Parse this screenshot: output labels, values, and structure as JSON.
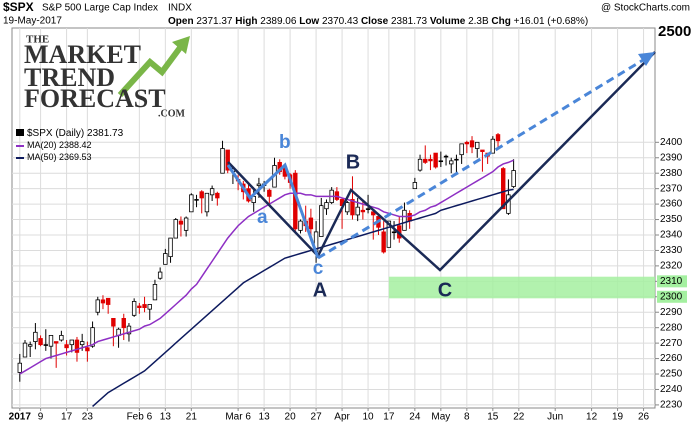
{
  "chart_data": {
    "type": "candlestick",
    "header": {
      "symbol": "$SPX",
      "name": "S&P 500 Large Cap Index",
      "exchange": "INDX",
      "source": "@ StockCharts.com",
      "date": "19-May-2017",
      "open_label": "Open",
      "high_label": "High",
      "low_label": "Low",
      "close_label": "Close",
      "volume_label": "Volume",
      "volume": "2.3B",
      "change_label": "Chg",
      "change": "+16.01 (+0.68%)"
    },
    "logo": [
      "THE",
      "MARKET",
      "TREND",
      "FORECAST",
      ".COM"
    ],
    "legend_label": "$SPX (Daily)",
    "up_color": "#000000",
    "down_color": "#e00000",
    "ohlc": [
      [
        2251,
        2263,
        2245,
        2257
      ],
      [
        2261,
        2272,
        2261,
        2270
      ],
      [
        2268,
        2271,
        2261,
        2269
      ],
      [
        2271,
        2283,
        2266,
        2277
      ],
      [
        2273,
        2275,
        2268,
        2269
      ],
      [
        2269,
        2279,
        2265,
        2269
      ],
      [
        2268,
        2275,
        2260,
        2275
      ],
      [
        2271,
        2271,
        2254,
        2270
      ],
      [
        2272,
        2278,
        2271,
        2275
      ],
      [
        2269,
        2272,
        2262,
        2267
      ],
      [
        2269,
        2272,
        2264,
        2272
      ],
      [
        2272,
        2274,
        2258,
        2264
      ],
      [
        2269,
        2276,
        2265,
        2271
      ],
      [
        2267,
        2271,
        2258,
        2265
      ],
      [
        2268,
        2284,
        2267,
        2280
      ],
      [
        2290,
        2300,
        2288,
        2298
      ],
      [
        2298,
        2301,
        2292,
        2296
      ],
      [
        2299,
        2299,
        2289,
        2295
      ],
      [
        2286,
        2286,
        2268,
        2281
      ],
      [
        2275,
        2280,
        2267,
        2279
      ],
      [
        2286,
        2289,
        2272,
        2280
      ],
      [
        2276,
        2283,
        2271,
        2281
      ],
      [
        2288,
        2299,
        2287,
        2297
      ],
      [
        2294,
        2296,
        2289,
        2293
      ],
      [
        2295,
        2300,
        2290,
        2293
      ],
      [
        2292,
        2295,
        2285,
        2295
      ],
      [
        2298,
        2311,
        2298,
        2308
      ],
      [
        2312,
        2319,
        2311,
        2316
      ],
      [
        2321,
        2331,
        2321,
        2328
      ],
      [
        2326,
        2338,
        2322,
        2338
      ],
      [
        2338,
        2351,
        2338,
        2350
      ],
      [
        2349,
        2352,
        2339,
        2347
      ],
      [
        2343,
        2352,
        2339,
        2351
      ],
      [
        2355,
        2367,
        2355,
        2366
      ],
      [
        2363,
        2366,
        2358,
        2363
      ],
      [
        2368,
        2369,
        2354,
        2364
      ],
      [
        2355,
        2367,
        2352,
        2367
      ],
      [
        2366,
        2372,
        2362,
        2370
      ],
      [
        2367,
        2368,
        2359,
        2364
      ],
      [
        2380,
        2401,
        2380,
        2396
      ],
      [
        2395,
        2395,
        2380,
        2382
      ],
      [
        2381,
        2384,
        2373,
        2383
      ],
      [
        2376,
        2379,
        2369,
        2375
      ],
      [
        2373,
        2375,
        2363,
        2368
      ],
      [
        2370,
        2374,
        2361,
        2362
      ],
      [
        2361,
        2369,
        2355,
        2365
      ],
      [
        2372,
        2377,
        2364,
        2373
      ],
      [
        2372,
        2375,
        2368,
        2373
      ],
      [
        2369,
        2370,
        2359,
        2365
      ],
      [
        2371,
        2390,
        2371,
        2385
      ],
      [
        2387,
        2389,
        2379,
        2381
      ],
      [
        2384,
        2385,
        2376,
        2378
      ],
      [
        2379,
        2380,
        2370,
        2374
      ],
      [
        2380,
        2382,
        2341,
        2344
      ],
      [
        2343,
        2350,
        2341,
        2349
      ],
      [
        2349,
        2359,
        2342,
        2346
      ],
      [
        2351,
        2357,
        2336,
        2344
      ],
      [
        2329,
        2349,
        2322,
        2342
      ],
      [
        2339,
        2364,
        2339,
        2359
      ],
      [
        2357,
        2363,
        2353,
        2361
      ],
      [
        2361,
        2371,
        2360,
        2369
      ],
      [
        2368,
        2371,
        2362,
        2363
      ],
      [
        2363,
        2364,
        2344,
        2359
      ],
      [
        2355,
        2362,
        2353,
        2361
      ],
      [
        2363,
        2378,
        2350,
        2353
      ],
      [
        2353,
        2364,
        2349,
        2358
      ],
      [
        2356,
        2363,
        2350,
        2355
      ],
      [
        2357,
        2366,
        2354,
        2357
      ],
      [
        2355,
        2356,
        2337,
        2353
      ],
      [
        2352,
        2353,
        2340,
        2345
      ],
      [
        2342,
        2349,
        2328,
        2329
      ],
      [
        2332,
        2349,
        2332,
        2349
      ],
      [
        2342,
        2349,
        2337,
        2342
      ],
      [
        2346,
        2352,
        2335,
        2338
      ],
      [
        2343,
        2361,
        2343,
        2356
      ],
      [
        2354,
        2356,
        2344,
        2349
      ],
      [
        2370,
        2377,
        2370,
        2374
      ],
      [
        2382,
        2392,
        2381,
        2389
      ],
      [
        2389,
        2398,
        2386,
        2387
      ],
      [
        2389,
        2392,
        2382,
        2388
      ],
      [
        2393,
        2393,
        2383,
        2384
      ],
      [
        2388,
        2394,
        2384,
        2388
      ],
      [
        2391,
        2392,
        2385,
        2391
      ],
      [
        2386,
        2390,
        2380,
        2388
      ],
      [
        2389,
        2392,
        2380,
        2389
      ],
      [
        2392,
        2399,
        2386,
        2399
      ],
      [
        2400,
        2401,
        2393,
        2399
      ],
      [
        2401,
        2404,
        2393,
        2397
      ],
      [
        2396,
        2400,
        2390,
        2400
      ],
      [
        2395,
        2395,
        2381,
        2394
      ],
      [
        2393,
        2393,
        2386,
        2391
      ],
      [
        2393,
        2404,
        2393,
        2402
      ],
      [
        2405,
        2406,
        2396,
        2401
      ],
      [
        2383,
        2384,
        2357,
        2357
      ],
      [
        2354,
        2376,
        2353,
        2366
      ],
      [
        2371.37,
        2389.06,
        2370.43,
        2381.73
      ]
    ],
    "series": [
      {
        "name": "MA(20)",
        "color": "#8e2fc4",
        "values": [
          2250,
          2252,
          2254,
          2256,
          2258,
          2260,
          2261,
          2262,
          2263,
          2264,
          2265,
          2266,
          2267,
          2268,
          2269,
          2271,
          2272,
          2273,
          2274,
          2275,
          2276,
          2277,
          2278,
          2279,
          2281,
          2282,
          2284,
          2286,
          2289,
          2292,
          2295,
          2298,
          2301,
          2305,
          2308,
          2313,
          2318,
          2323,
          2328,
          2333,
          2338,
          2342,
          2346,
          2349,
          2352,
          2354,
          2356,
          2358,
          2360,
          2362,
          2364,
          2366,
          2367,
          2367,
          2367,
          2366,
          2366,
          2365,
          2365,
          2365,
          2365,
          2365,
          2364,
          2363,
          2362,
          2361,
          2360,
          2359,
          2358,
          2357,
          2355,
          2354,
          2353,
          2352,
          2352,
          2352,
          2353,
          2355,
          2356,
          2358,
          2359,
          2361,
          2363,
          2365,
          2367,
          2369,
          2371,
          2373,
          2375,
          2377,
          2379,
          2381,
          2384,
          2386,
          2387,
          2388.42
        ]
      },
      {
        "name": "MA(50)",
        "color": "#0d1a5e",
        "values": [
          null,
          null,
          null,
          null,
          null,
          null,
          null,
          null,
          null,
          null,
          null,
          null,
          null,
          null,
          2229,
          2232,
          2235,
          2238,
          2240,
          2242,
          2244,
          2246,
          2248,
          2250,
          2252,
          2255,
          2258,
          2261,
          2264,
          2267,
          2270,
          2273,
          2276,
          2279,
          2282,
          2285,
          2288,
          2291,
          2294,
          2297,
          2300,
          2303,
          2306,
          2309,
          2311,
          2313,
          2315,
          2317,
          2319,
          2321,
          2323,
          2325,
          2326,
          2327,
          2328,
          2329,
          2330,
          2331,
          2332,
          2333,
          2334,
          2335,
          2336,
          2337,
          2338,
          2339,
          2340,
          2341,
          2342,
          2343,
          2344,
          2345,
          2346,
          2347,
          2348,
          2349,
          2350,
          2351,
          2352,
          2353,
          2354,
          2356,
          2357,
          2358,
          2359,
          2360,
          2361,
          2362,
          2363,
          2364,
          2365,
          2366,
          2367,
          2368,
          2369,
          2369.53
        ]
      }
    ],
    "xlim": [
      -1.5,
      122.2
    ],
    "xticks": [
      {
        "value": 0,
        "label": "2017"
      },
      {
        "value": 4,
        "label": "9"
      },
      {
        "value": 9,
        "label": "17"
      },
      {
        "value": 13,
        "label": "23"
      },
      {
        "value": 23,
        "label": "Feb 6"
      },
      {
        "value": 28,
        "label": "13"
      },
      {
        "value": 33,
        "label": "21"
      },
      {
        "value": 42,
        "label": "Mar 6"
      },
      {
        "value": 47,
        "label": "13"
      },
      {
        "value": 52,
        "label": "20"
      },
      {
        "value": 57,
        "label": "27"
      },
      {
        "value": 62,
        "label": "Apr"
      },
      {
        "value": 67,
        "label": "10"
      },
      {
        "value": 71,
        "label": "17"
      },
      {
        "value": 76,
        "label": "24"
      },
      {
        "value": 81,
        "label": "May"
      },
      {
        "value": 86,
        "label": "8"
      },
      {
        "value": 91,
        "label": "15"
      },
      {
        "value": 96,
        "label": "22"
      },
      {
        "value": 103,
        "label": "Jun"
      },
      {
        "value": 110,
        "label": "12"
      },
      {
        "value": 115,
        "label": "19"
      },
      {
        "value": 120,
        "label": "26"
      }
    ],
    "ylim": [
      2228,
      2474
    ],
    "yticks": [
      2230,
      2240,
      2250,
      2260,
      2270,
      2280,
      2290,
      2300,
      2310,
      2320,
      2330,
      2340,
      2350,
      2360,
      2370,
      2380,
      2390,
      2400
    ],
    "grid": true,
    "zone": {
      "ylim": [
        2299,
        2313
      ],
      "xstart": 71,
      "color": "#a4f0a0"
    },
    "annotations": [
      "a",
      "b",
      "c",
      "A",
      "B",
      "C",
      "2500"
    ]
  }
}
